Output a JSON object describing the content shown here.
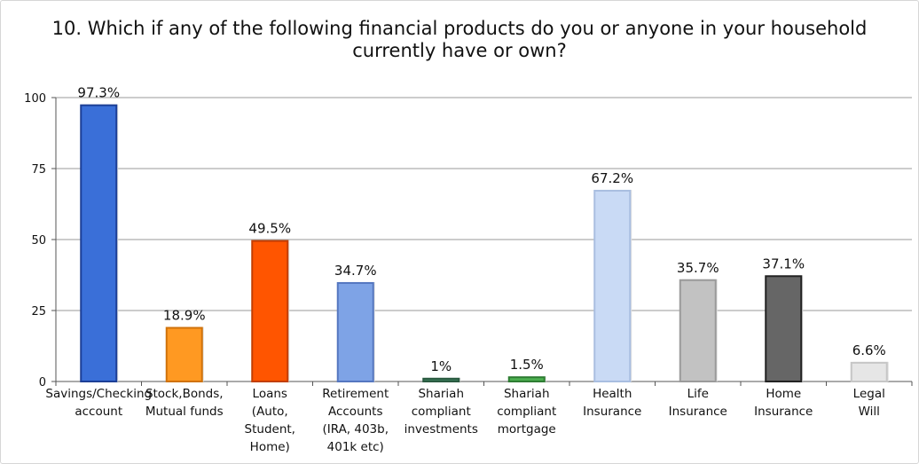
{
  "chart_data": {
    "type": "bar",
    "title": "10. Which if any of the following financial products do you or anyone in your household currently have or own?",
    "xlabel": "",
    "ylabel": "",
    "ylim": [
      0,
      100
    ],
    "yticks": [
      0,
      25,
      50,
      75,
      100
    ],
    "grid": true,
    "legend": "none",
    "categories": [
      [
        "Savings/Checking",
        "account"
      ],
      [
        "Stock,Bonds,",
        "Mutual funds"
      ],
      [
        "Loans",
        "(Auto,",
        "Student,",
        "Home)"
      ],
      [
        "Retirement",
        "Accounts",
        "(IRA, 403b,",
        "401k etc)"
      ],
      [
        "Shariah",
        "compliant",
        "investments"
      ],
      [
        "Shariah",
        "compliant",
        "mortgage"
      ],
      [
        "Health",
        "Insurance"
      ],
      [
        "Life",
        "Insurance"
      ],
      [
        "Home",
        "Insurance"
      ],
      [
        "Legal",
        "Will"
      ]
    ],
    "values": [
      97.3,
      18.9,
      49.5,
      34.7,
      1,
      1.5,
      67.2,
      35.7,
      37.1,
      6.6
    ],
    "data_labels": [
      "97.3%",
      "18.9%",
      "49.5%",
      "34.7%",
      "1%",
      "1.5%",
      "67.2%",
      "35.7%",
      "37.1%",
      "6.6%"
    ],
    "colors": [
      {
        "fill": "#3a6fd8",
        "stroke": "#1c3f96"
      },
      {
        "fill": "#ff9922",
        "stroke": "#d0720a"
      },
      {
        "fill": "#ff5500",
        "stroke": "#c23e00"
      },
      {
        "fill": "#7ea3e6",
        "stroke": "#5577c0"
      },
      {
        "fill": "#3b7a5a",
        "stroke": "#2a5a40"
      },
      {
        "fill": "#4caf50",
        "stroke": "#2e7d32"
      },
      {
        "fill": "#c9daf5",
        "stroke": "#a9bee0"
      },
      {
        "fill": "#c2c2c2",
        "stroke": "#9a9a9a"
      },
      {
        "fill": "#666666",
        "stroke": "#222222"
      },
      {
        "fill": "#e6e6e6",
        "stroke": "#c6c6c6"
      }
    ]
  }
}
